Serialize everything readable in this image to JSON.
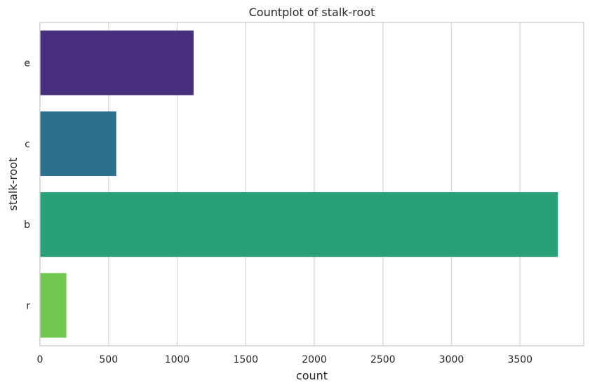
{
  "chart_data": {
    "type": "bar",
    "orientation": "horizontal",
    "title": "Countplot of stalk-root",
    "xlabel": "count",
    "ylabel": "stalk-root",
    "categories": [
      "e",
      "c",
      "b",
      "r"
    ],
    "values": [
      1120,
      556,
      3776,
      192
    ],
    "xlim": [
      0,
      3964
    ],
    "xticks": [
      0,
      500,
      1000,
      1500,
      2000,
      2500,
      3000,
      3500
    ],
    "grid": true,
    "legend": "none",
    "colors": [
      "#472f7d",
      "#2d708e",
      "#29a078",
      "#74c653"
    ]
  }
}
